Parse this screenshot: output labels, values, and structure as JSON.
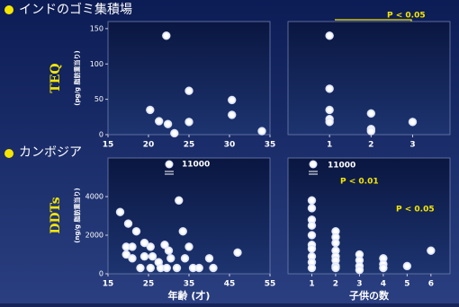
{
  "sections": [
    {
      "label": "インドのゴミ集積場"
    },
    {
      "label": "カンボジア"
    }
  ],
  "chart_data": [
    {
      "type": "scatter",
      "y_label": "TEQ",
      "y_unit": "(pg/g 脂肪重当り)",
      "xlim": [
        15,
        35
      ],
      "xticks": [
        15,
        20,
        25,
        30,
        35
      ],
      "ylim": [
        0,
        160
      ],
      "yticks": [
        0,
        50,
        100,
        150
      ],
      "x": [
        22.2,
        20.2,
        21.3,
        22.4,
        25,
        25,
        23.2,
        30.3,
        30.3,
        34
      ],
      "values": [
        140,
        35,
        19,
        15,
        62,
        18,
        2,
        49,
        28,
        5
      ],
      "color": "#ffffff"
    },
    {
      "type": "scatter",
      "annotations": [
        "P < 0.05"
      ],
      "xlim": [
        0,
        3.9
      ],
      "xticks": [
        1,
        2,
        3
      ],
      "ylim": [
        0,
        160
      ],
      "x": [
        1,
        1,
        1,
        1,
        1,
        2,
        2,
        2,
        3
      ],
      "values": [
        140,
        65,
        35,
        22,
        18,
        30,
        8,
        5,
        18
      ],
      "color": "#ffffff"
    },
    {
      "type": "scatter",
      "y_label": "DDTs",
      "y_unit": "(ng/g 脂肪重当り)",
      "x_label": "年齢 (才)",
      "annotations": [
        "11000"
      ],
      "xlim": [
        15,
        55
      ],
      "xticks": [
        15,
        25,
        35,
        45,
        55
      ],
      "ylim": [
        0,
        6000
      ],
      "yticks": [
        0,
        2000,
        4000
      ],
      "x": [
        18,
        20,
        22,
        19.5,
        21,
        19.5,
        21,
        24,
        25.5,
        24,
        26,
        27.5,
        25.5,
        23,
        29,
        30,
        30.5,
        32,
        32.5,
        33.5,
        34,
        35,
        36,
        37.5,
        40,
        41,
        47,
        28,
        29.5
      ],
      "values": [
        3200,
        2600,
        2200,
        1400,
        1400,
        1000,
        800,
        1600,
        1400,
        900,
        900,
        600,
        300,
        300,
        1500,
        1200,
        800,
        300,
        3800,
        2200,
        800,
        1400,
        300,
        300,
        800,
        300,
        1100,
        300,
        300
      ],
      "color": "#ffffff"
    },
    {
      "type": "scatter",
      "x_label": "子供の数",
      "annotations": [
        "11000",
        "P < 0.01",
        "P < 0.05"
      ],
      "xlim": [
        0,
        6.8
      ],
      "xticks": [
        1,
        2,
        3,
        4,
        5,
        6
      ],
      "ylim": [
        0,
        6000
      ],
      "x": [
        1,
        1,
        1,
        1,
        1,
        1,
        1,
        1,
        1,
        1,
        2,
        2,
        2,
        2,
        2,
        2,
        2,
        2,
        3,
        3,
        3,
        3,
        4,
        4,
        4,
        5,
        6
      ],
      "values": [
        3800,
        3400,
        2800,
        2500,
        2000,
        1500,
        1300,
        900,
        600,
        300,
        2200,
        1900,
        1600,
        1200,
        900,
        700,
        400,
        300,
        1000,
        700,
        400,
        200,
        800,
        500,
        300,
        400,
        1200
      ],
      "color": "#ffffff"
    }
  ]
}
